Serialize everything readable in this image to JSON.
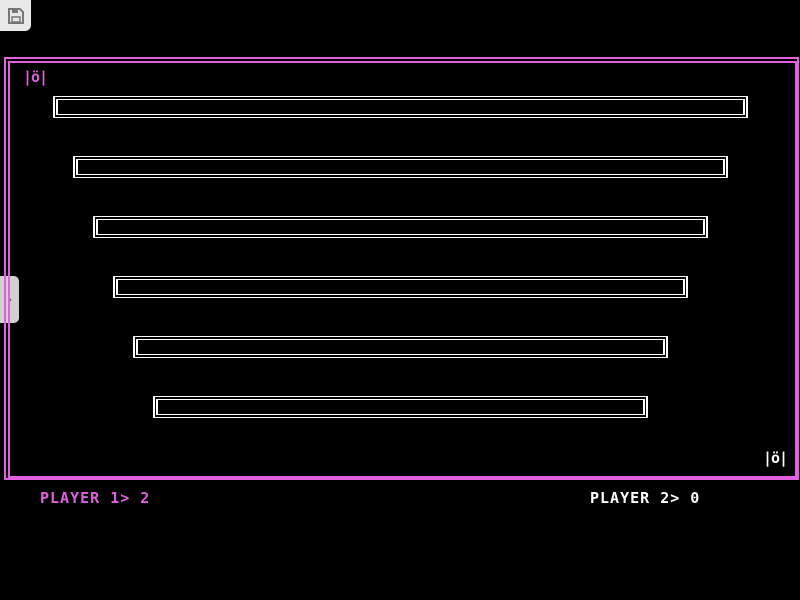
{
  "toolbar": {
    "save_icon": "floppy-disk-icon",
    "side_tab_icon": "chevron-right-icon",
    "side_tab_glyph": "›"
  },
  "colors": {
    "player1": "#e060e0",
    "player2": "#ffffff",
    "frame": "#e060e0",
    "background": "#000000",
    "bars": "#ffffff"
  },
  "game": {
    "player1_paddle": "|ö|",
    "player2_paddle": "|ö|",
    "bar_count": 6
  },
  "scoreboard": {
    "player1": "PLAYER 1> 2",
    "player2": "PLAYER 2> 0"
  }
}
